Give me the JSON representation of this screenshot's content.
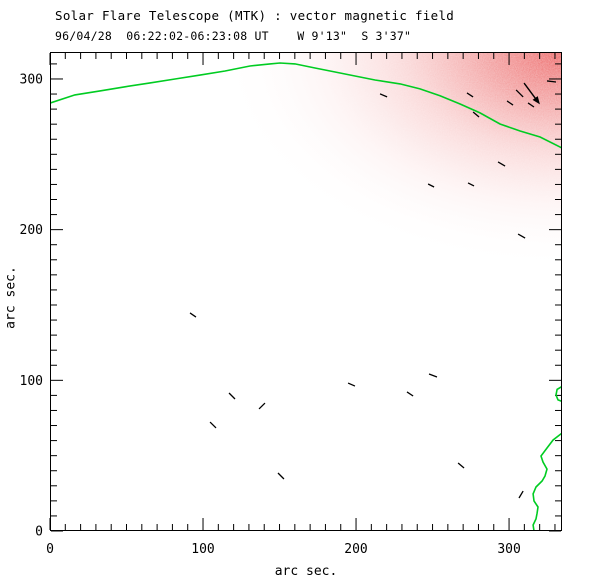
{
  "header": {
    "title": "Solar Flare Telescope (MTK) : vector magnetic field",
    "subtitle": "96/04/28  06:22:02-06:23:08 UT    W 9'13\"  S 3'37\""
  },
  "chart_data": {
    "type": "scatter",
    "title": "Solar Flare Telescope (MTK) : vector magnetic field",
    "subtitle": "96/04/28  06:22:02-06:23:08 UT    W 9'13\"  S 3'37\"",
    "xlabel": "arc sec.",
    "ylabel": "arc sec.",
    "xlim": [
      0,
      334.6
    ],
    "ylim": [
      0,
      317.9
    ],
    "xticks": [
      "0",
      "100",
      "200",
      "300"
    ],
    "yticks": [
      "0",
      "100",
      "200",
      "300"
    ],
    "xtick_values": [
      0,
      100,
      200,
      300
    ],
    "ytick_values": [
      0,
      100,
      200,
      300
    ],
    "minor_tick_step": 10,
    "grid": false,
    "legend": "none",
    "colors": {
      "limb": "#00cc22",
      "vectors": "#000000",
      "shading": "#ec6464",
      "background": "#ffffff",
      "axis": "#000000"
    },
    "shading": {
      "description": "dithered pink-red intensity patch strongest at top-right corner, fading toward the solar limb curve",
      "center_x": 334.6,
      "center_y": 317.9,
      "radius_x": 225,
      "radius_y": 145
    },
    "limb_curve": [
      [
        0,
        284.0
      ],
      [
        16.3,
        289.4
      ],
      [
        32.7,
        292.1
      ],
      [
        49.0,
        294.8
      ],
      [
        65.4,
        297.4
      ],
      [
        81.7,
        300.0
      ],
      [
        98.0,
        302.6
      ],
      [
        114.4,
        305.3
      ],
      [
        130.7,
        308.6
      ],
      [
        143.8,
        310.0
      ],
      [
        150.3,
        310.6
      ],
      [
        160.1,
        310.0
      ],
      [
        173.2,
        307.3
      ],
      [
        186.3,
        304.6
      ],
      [
        199.3,
        302.0
      ],
      [
        212.4,
        299.3
      ],
      [
        228.8,
        296.7
      ],
      [
        241.8,
        293.4
      ],
      [
        254.9,
        288.8
      ],
      [
        268.0,
        283.4
      ],
      [
        281.0,
        277.5
      ],
      [
        294.1,
        270.1
      ],
      [
        307.2,
        265.5
      ],
      [
        320.3,
        261.5
      ],
      [
        334.6,
        254.2
      ]
    ],
    "lower_contour": [
      [
        334.6,
        65.0
      ],
      [
        328.8,
        60.4
      ],
      [
        324.8,
        55.1
      ],
      [
        320.9,
        49.8
      ],
      [
        322.2,
        45.8
      ],
      [
        324.8,
        41.1
      ],
      [
        323.5,
        36.5
      ],
      [
        321.6,
        33.2
      ],
      [
        317.6,
        29.2
      ],
      [
        315.7,
        24.6
      ],
      [
        316.3,
        19.9
      ],
      [
        318.9,
        15.9
      ],
      [
        318.3,
        11.9
      ],
      [
        317.6,
        8.0
      ],
      [
        315.7,
        4.0
      ],
      [
        316.3,
        0.0
      ]
    ],
    "small_contour": [
      [
        334.6,
        96.0
      ],
      [
        331.4,
        94.0
      ],
      [
        330.7,
        90.2
      ],
      [
        332.0,
        87.0
      ],
      [
        334.6,
        86.0
      ]
    ],
    "field_vectors": [
      [
        272.5,
        290.7,
        276.5,
        288.1
      ],
      [
        276.5,
        278.1,
        280.4,
        274.8
      ],
      [
        304.6,
        292.7,
        309.2,
        288.1
      ],
      [
        298.7,
        285.4,
        302.6,
        282.7
      ],
      [
        312.4,
        284.1,
        316.3,
        281.4
      ],
      [
        324.8,
        298.7,
        330.7,
        298.0
      ],
      [
        215.7,
        290.1,
        220.3,
        288.1
      ],
      [
        292.8,
        244.9,
        297.4,
        242.2
      ],
      [
        247.1,
        230.3,
        251.0,
        228.3
      ],
      [
        273.2,
        231.0,
        277.1,
        229.0
      ],
      [
        305.9,
        197.1,
        310.5,
        194.4
      ],
      [
        91.5,
        144.7,
        95.4,
        142.0
      ],
      [
        194.8,
        98.2,
        199.3,
        96.2
      ],
      [
        117.0,
        91.6,
        120.9,
        87.6
      ],
      [
        136.6,
        81.0,
        140.5,
        84.9
      ],
      [
        104.6,
        72.3,
        108.5,
        68.4
      ],
      [
        233.3,
        92.3,
        237.3,
        89.6
      ],
      [
        247.7,
        104.2,
        252.9,
        102.2
      ],
      [
        149.0,
        38.5,
        152.9,
        34.5
      ],
      [
        266.7,
        45.1,
        270.6,
        41.8
      ],
      [
        306.5,
        21.9,
        309.2,
        26.5
      ]
    ],
    "arrow": [
      309.8,
      297.3,
      319.0,
      284.7
    ]
  }
}
